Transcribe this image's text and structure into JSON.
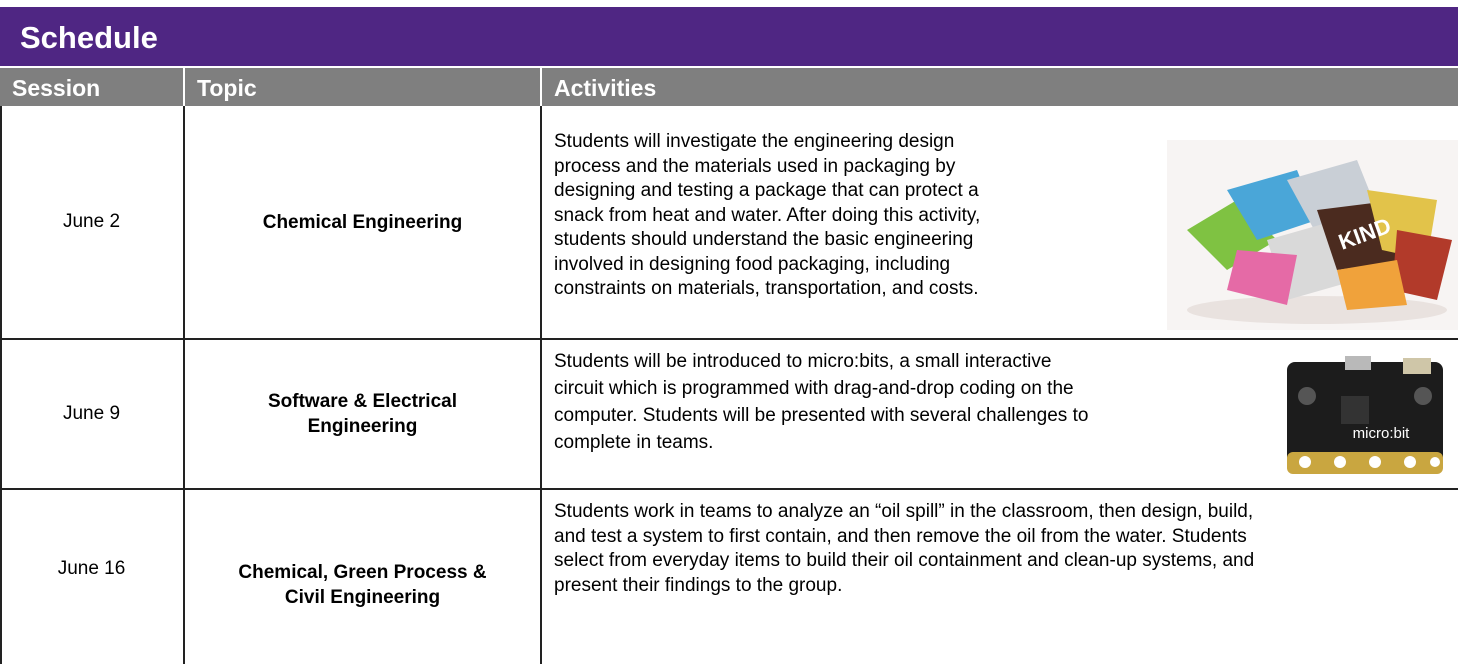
{
  "title": "Schedule",
  "table": {
    "columns": [
      "Session",
      "Topic",
      "Activities"
    ],
    "rows": [
      {
        "session": "June 2",
        "topic": [
          "Chemical Engineering"
        ],
        "activities": [
          "Students will investigate the engineering design",
          "process and the materials used in packaging by",
          "designing and testing a package that can protect a",
          "snack from heat and water. After doing this activity,",
          "students should understand the basic engineering",
          "involved in designing food packaging, including",
          "constraints on materials, transportation, and costs."
        ]
      },
      {
        "session": "June 9",
        "topic": [
          "Software & Electrical",
          "Engineering"
        ],
        "activities": [
          "Students will be introduced to micro:bits, a small interactive",
          "circuit which is programmed with drag-and-drop coding on the",
          "computer. Students will be presented with several challenges to",
          "complete in teams."
        ]
      },
      {
        "session": "June 16",
        "topic": [
          "Chemical, Green Process &",
          "Civil Engineering"
        ],
        "activities": [
          "Students work in teams to analyze an “oil spill” in the classroom, then design, build,",
          "and test a system to first contain, and then remove the oil from the water. Students",
          "select from everyday items to build their oil containment and clean-up systems, and",
          "present their findings to the group."
        ]
      }
    ]
  }
}
